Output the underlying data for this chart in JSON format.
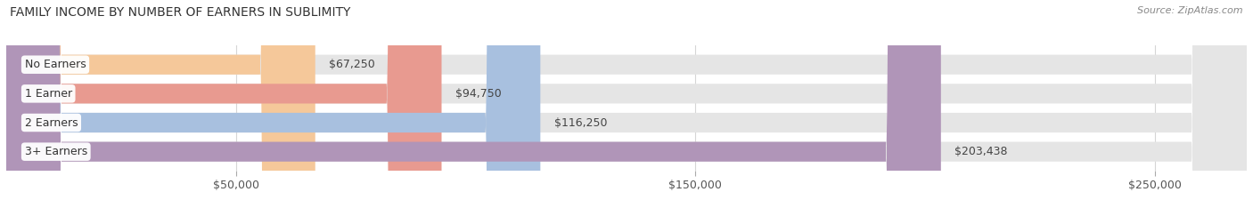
{
  "title": "FAMILY INCOME BY NUMBER OF EARNERS IN SUBLIMITY",
  "source": "Source: ZipAtlas.com",
  "categories": [
    "No Earners",
    "1 Earner",
    "2 Earners",
    "3+ Earners"
  ],
  "values": [
    67250,
    94750,
    116250,
    203438
  ],
  "bar_colors": [
    "#F5C89A",
    "#E89A90",
    "#A8C0DF",
    "#B095B8"
  ],
  "bg_bar_color": "#E5E5E5",
  "value_labels": [
    "$67,250",
    "$94,750",
    "$116,250",
    "$203,438"
  ],
  "xmax": 270000,
  "xticks": [
    50000,
    150000,
    250000
  ],
  "xtick_labels": [
    "$50,000",
    "$150,000",
    "$250,000"
  ],
  "background_color": "#FFFFFF",
  "title_fontsize": 10,
  "label_fontsize": 9,
  "source_fontsize": 8,
  "bar_height": 0.68,
  "rounding_size": 12000
}
